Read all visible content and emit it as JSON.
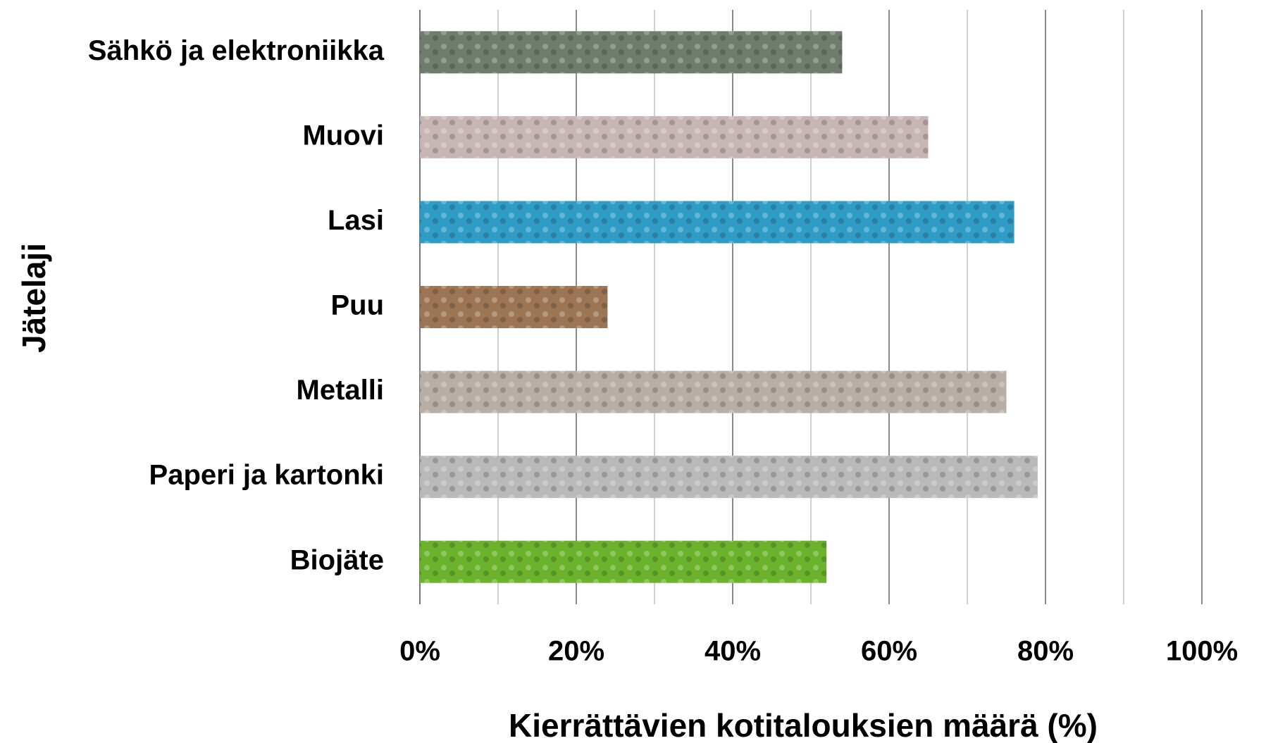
{
  "chart_data": {
    "type": "barh",
    "categories": [
      "Sähkö ja elektroniikka",
      "Muovi",
      "Lasi",
      "Puu",
      "Metalli",
      "Paperi ja kartonki",
      "Biojäte"
    ],
    "values": [
      54,
      65,
      76,
      24,
      75,
      79,
      52
    ],
    "colors": [
      "#6f7d6c",
      "#c7b6b4",
      "#2e9cc4",
      "#9c7554",
      "#b9aea6",
      "#b9b9b9",
      "#6bb32c"
    ],
    "xlim": [
      0,
      100
    ],
    "xticks": [
      {
        "value": 0,
        "label": "0%"
      },
      {
        "value": 20,
        "label": "20%"
      },
      {
        "value": 40,
        "label": "40%"
      },
      {
        "value": 60,
        "label": "60%"
      },
      {
        "value": 80,
        "label": "80%"
      },
      {
        "value": 100,
        "label": "100%"
      }
    ],
    "minor_xticks": [
      10,
      30,
      50,
      70,
      90
    ],
    "grid": true,
    "xlabel": "Kierrättävien kotitalouksien määrä (%)",
    "ylabel": "Jätelaji"
  }
}
